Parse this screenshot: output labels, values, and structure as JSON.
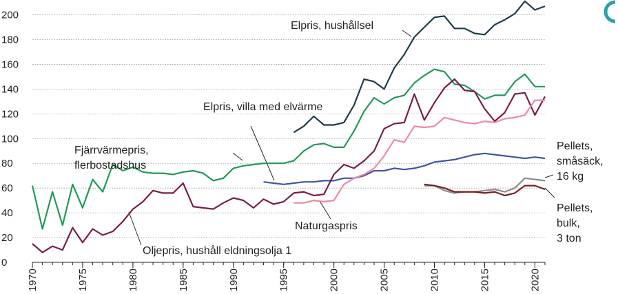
{
  "chart_data": {
    "type": "line",
    "x": [
      1970,
      1971,
      1972,
      1973,
      1974,
      1975,
      1976,
      1977,
      1978,
      1979,
      1980,
      1981,
      1982,
      1983,
      1984,
      1985,
      1986,
      1987,
      1988,
      1989,
      1990,
      1991,
      1992,
      1993,
      1994,
      1995,
      1996,
      1997,
      1998,
      1999,
      2000,
      2001,
      2002,
      2003,
      2004,
      2005,
      2006,
      2007,
      2008,
      2009,
      2010,
      2011,
      2012,
      2013,
      2014,
      2015,
      2016,
      2017,
      2018,
      2019,
      2020,
      2021
    ],
    "xlim": [
      1970,
      2021
    ],
    "xticks": [
      1970,
      1975,
      1980,
      1985,
      1990,
      1995,
      2000,
      2005,
      2010,
      2015,
      2020
    ],
    "ylim": [
      0,
      212
    ],
    "yticks": [
      0,
      20,
      40,
      60,
      80,
      100,
      120,
      140,
      160,
      180,
      200
    ],
    "grid": true,
    "series": [
      {
        "label_lines": [
          "Elpris, hushållsel"
        ],
        "color": "#1b3b48",
        "values": [
          null,
          null,
          null,
          null,
          null,
          null,
          null,
          null,
          null,
          null,
          null,
          null,
          null,
          null,
          null,
          null,
          null,
          null,
          null,
          null,
          null,
          null,
          null,
          null,
          null,
          null,
          105,
          110,
          118,
          111,
          111,
          113,
          127,
          148,
          146,
          140,
          157,
          168,
          182,
          190,
          198,
          199,
          189,
          189,
          185,
          184,
          192,
          196,
          201,
          211,
          204,
          207
        ]
      },
      {
        "label_lines": [
          "Elpris, villa med elvärme"
        ],
        "color": "#1f9a55",
        "values": [
          62,
          27,
          57,
          30,
          63,
          44,
          67,
          57,
          79,
          74,
          77,
          73,
          72,
          72,
          71,
          73,
          74,
          72,
          66,
          68,
          76,
          78,
          79,
          80,
          80,
          80,
          82,
          90,
          95,
          96,
          93,
          93,
          106,
          122,
          133,
          128,
          133,
          135,
          145,
          151,
          156,
          154,
          144,
          143,
          138,
          132,
          135,
          135,
          146,
          152,
          142,
          142
        ]
      },
      {
        "label_lines": [
          "Fjärrvärmepris,",
          "flerbostadshus"
        ],
        "color": "#3d55a5",
        "values": [
          null,
          null,
          null,
          null,
          null,
          null,
          null,
          null,
          null,
          null,
          null,
          null,
          null,
          null,
          null,
          null,
          null,
          null,
          null,
          null,
          null,
          null,
          null,
          65,
          64,
          63,
          64,
          65,
          65,
          66,
          66,
          68,
          68,
          70,
          74,
          74,
          76,
          75,
          76,
          78,
          81,
          82,
          83,
          85,
          87,
          88,
          87,
          86,
          85,
          84,
          85,
          84
        ]
      },
      {
        "label_lines": [
          "Oljepris, hushåll eldningsolja 1"
        ],
        "color": "#7b1a48",
        "values": [
          15,
          8,
          13,
          10,
          28,
          16,
          27,
          22,
          25,
          33,
          43,
          49,
          58,
          56,
          56,
          64,
          45,
          44,
          43,
          48,
          52,
          50,
          44,
          51,
          47,
          49,
          56,
          57,
          54,
          55,
          71,
          79,
          76,
          82,
          90,
          108,
          112,
          113,
          136,
          115,
          129,
          141,
          148,
          139,
          138,
          124,
          114,
          121,
          136,
          137,
          119,
          134
        ]
      },
      {
        "label_lines": [
          "Naturgaspris"
        ],
        "color": "#e98aa1",
        "values": [
          null,
          null,
          null,
          null,
          null,
          null,
          null,
          null,
          null,
          null,
          null,
          null,
          null,
          null,
          null,
          null,
          null,
          null,
          null,
          null,
          null,
          null,
          null,
          null,
          null,
          null,
          48,
          48,
          50,
          49,
          50,
          63,
          68,
          71,
          76,
          86,
          99,
          97,
          110,
          109,
          110,
          117,
          115,
          113,
          112,
          114,
          113,
          116,
          117,
          119,
          131,
          131
        ]
      },
      {
        "label_lines": [
          "Pellets,",
          "småsäck,",
          "16 kg"
        ],
        "color": "#8c8c8c",
        "values": [
          null,
          null,
          null,
          null,
          null,
          null,
          null,
          null,
          null,
          null,
          null,
          null,
          null,
          null,
          null,
          null,
          null,
          null,
          null,
          null,
          null,
          null,
          null,
          null,
          null,
          null,
          null,
          null,
          null,
          null,
          null,
          null,
          null,
          null,
          null,
          null,
          null,
          null,
          null,
          62,
          62,
          58,
          56,
          57,
          57,
          58,
          59,
          57,
          60,
          68,
          67,
          66
        ]
      },
      {
        "label_lines": [
          "Pellets,",
          "bulk,",
          "3 ton"
        ],
        "color": "#7a1f1f",
        "values": [
          null,
          null,
          null,
          null,
          null,
          null,
          null,
          null,
          null,
          null,
          null,
          null,
          null,
          null,
          null,
          null,
          null,
          null,
          null,
          null,
          null,
          null,
          null,
          null,
          null,
          null,
          null,
          null,
          null,
          null,
          null,
          null,
          null,
          null,
          null,
          null,
          null,
          null,
          null,
          63,
          62,
          60,
          57,
          57,
          57,
          56,
          57,
          54,
          56,
          62,
          62,
          59
        ]
      }
    ]
  }
}
